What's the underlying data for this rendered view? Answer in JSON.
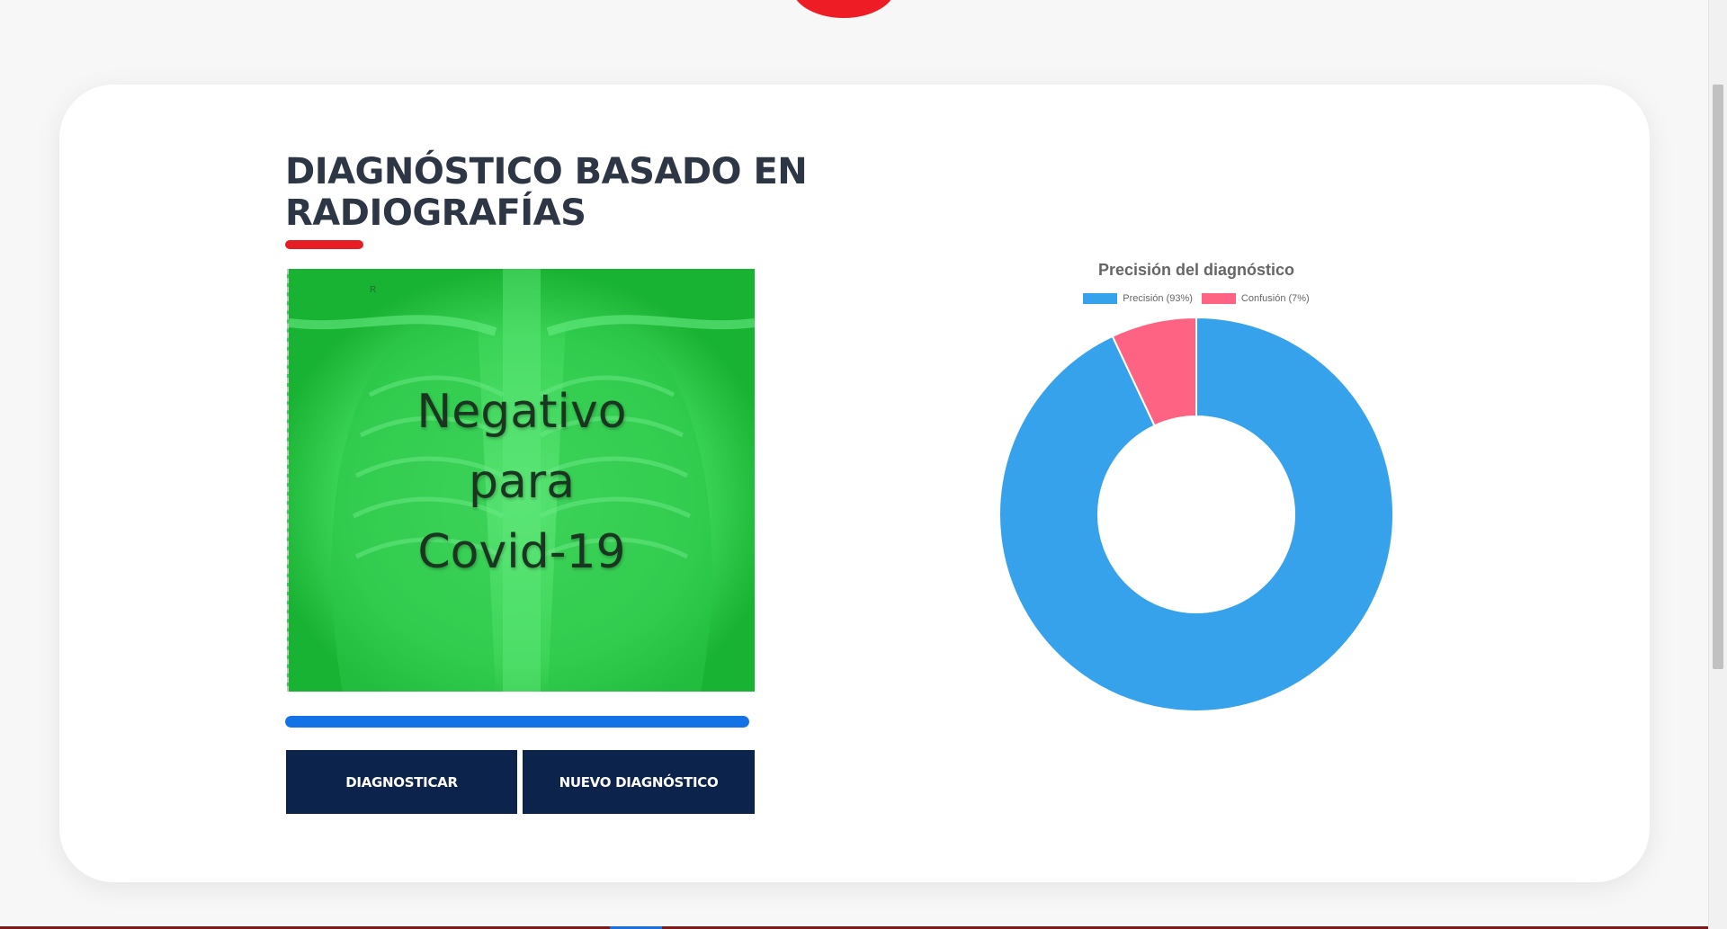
{
  "section": {
    "title": "DIAGNÓSTICO BASADO EN RADIOGRAFÍAS"
  },
  "xray": {
    "result_line1": "Negativo",
    "result_line2": "para",
    "result_line3": "Covid-19",
    "marker": "R",
    "tint_color": "#2fd24e"
  },
  "progress": {
    "value": 1.0,
    "color": "#1373e6"
  },
  "buttons": {
    "diagnose": "DIAGNOSTICAR",
    "new_diagnosis": "NUEVO DIAGNÓSTICO"
  },
  "chart_data": {
    "type": "pie",
    "variant": "doughnut",
    "title": "Precisión del diagnóstico",
    "labels": [
      "Precisión (93%)",
      "Confusión (7%)"
    ],
    "values": [
      93,
      7
    ],
    "colors": [
      "#36a2eb",
      "#ff6384"
    ],
    "legend_position": "top"
  },
  "colors": {
    "brand_red": "#e51d25",
    "button_navy": "#0c234b",
    "title_text": "#2d3645"
  }
}
